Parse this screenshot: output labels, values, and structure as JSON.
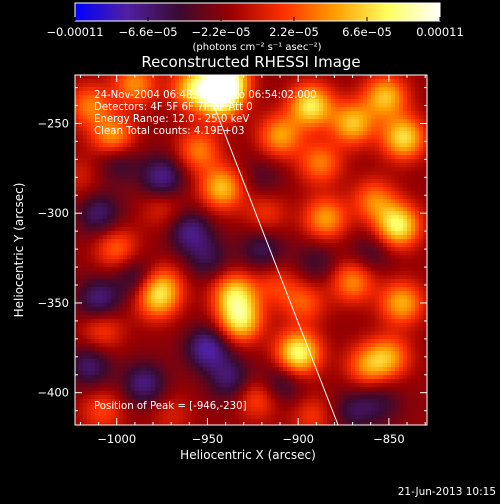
{
  "chart_data": {
    "type": "heatmap",
    "title": "Reconstructed RHESSI Image",
    "xlabel": "Heliocentric X (arcsec)",
    "ylabel": "Heliocentric Y (arcsec)",
    "xlim": [
      -1023,
      -829
    ],
    "ylim": [
      -418,
      -223
    ],
    "x_ticks": [
      -1000,
      -950,
      -900,
      -850
    ],
    "x_tick_labels": [
      "−1000",
      "−950",
      "−900",
      "−850"
    ],
    "y_ticks": [
      -250,
      -300,
      -350,
      -400
    ],
    "y_tick_labels": [
      "−250",
      "−300",
      "−350",
      "−400"
    ],
    "colorbar": {
      "min": -0.00011,
      "max": 0.00011,
      "ticks": [
        -0.00011,
        -6.6e-05,
        -2.2e-05,
        2.2e-05,
        6.6e-05,
        0.00011
      ],
      "tick_labels": [
        "−0.00011",
        "−6.6e−05",
        "−2.2e−05",
        "2.2e−05",
        "6.6e−05",
        "0.00011"
      ],
      "unit_label": "(photons cm⁻² s⁻¹ asec⁻²)",
      "colormap": [
        "#0000ff",
        "#5020a0",
        "#3a0a30",
        "#9a0000",
        "#ff3000",
        "#ffa000",
        "#ffff60",
        "#ffffff"
      ]
    },
    "annotations": [
      "24-Nov-2004 06:48:02.000 to 06:54:02.000",
      "Detectors: 4F 5F 6F 7F 8F  Att 0",
      "Energy Range: 12.0 - 25.0 keV",
      "Clean     Total counts: 4.19E+03"
    ],
    "peak_label": "Position of Peak = [-946,-230]",
    "limb_line": {
      "points": [
        [
          -953,
          -223
        ],
        [
          -878,
          -418
        ]
      ]
    },
    "blobs": [
      {
        "x": -940,
        "y": -225,
        "v": 1.0
      },
      {
        "x": -943,
        "y": -235,
        "v": 0.95
      },
      {
        "x": -958,
        "y": -230,
        "v": 0.7
      },
      {
        "x": -990,
        "y": -228,
        "v": 0.55
      },
      {
        "x": -1002,
        "y": -258,
        "v": 0.65
      },
      {
        "x": -1015,
        "y": -240,
        "v": 0.5
      },
      {
        "x": -955,
        "y": -265,
        "v": 0.5
      },
      {
        "x": -942,
        "y": -286,
        "v": 0.7
      },
      {
        "x": -910,
        "y": -257,
        "v": 0.6
      },
      {
        "x": -893,
        "y": -240,
        "v": 0.85
      },
      {
        "x": -870,
        "y": -250,
        "v": 0.7
      },
      {
        "x": -888,
        "y": -272,
        "v": 0.5
      },
      {
        "x": -852,
        "y": -235,
        "v": 0.7
      },
      {
        "x": -842,
        "y": -258,
        "v": 0.8
      },
      {
        "x": -918,
        "y": -300,
        "v": 0.3
      },
      {
        "x": -885,
        "y": -303,
        "v": 0.6
      },
      {
        "x": -845,
        "y": -307,
        "v": 0.9
      },
      {
        "x": -858,
        "y": -293,
        "v": 0.5
      },
      {
        "x": -975,
        "y": -297,
        "v": 0.25
      },
      {
        "x": -1000,
        "y": -320,
        "v": 0.45
      },
      {
        "x": -975,
        "y": -340,
        "v": 0.45
      },
      {
        "x": -978,
        "y": -348,
        "v": 0.55
      },
      {
        "x": -1008,
        "y": -365,
        "v": 0.35
      },
      {
        "x": -935,
        "y": -345,
        "v": 0.75
      },
      {
        "x": -932,
        "y": -360,
        "v": 0.8
      },
      {
        "x": -912,
        "y": -340,
        "v": 0.3
      },
      {
        "x": -897,
        "y": -350,
        "v": 0.4
      },
      {
        "x": -870,
        "y": -338,
        "v": 0.55
      },
      {
        "x": -843,
        "y": -350,
        "v": 0.65
      },
      {
        "x": -900,
        "y": -378,
        "v": 0.95
      },
      {
        "x": -922,
        "y": -403,
        "v": 0.4
      },
      {
        "x": -862,
        "y": -385,
        "v": 0.5
      },
      {
        "x": -850,
        "y": -380,
        "v": 0.55
      },
      {
        "x": -1008,
        "y": -410,
        "v": 0.35
      },
      {
        "x": -970,
        "y": -412,
        "v": 0.2
      },
      {
        "x": -892,
        "y": -413,
        "v": 0.3
      },
      {
        "x": -1020,
        "y": -280,
        "v": 0.2
      },
      {
        "x": -1000,
        "y": -270,
        "v": -0.35
      },
      {
        "x": -975,
        "y": -280,
        "v": -0.5
      },
      {
        "x": -1010,
        "y": -300,
        "v": -0.4
      },
      {
        "x": -960,
        "y": -310,
        "v": -0.45
      },
      {
        "x": -950,
        "y": -325,
        "v": -0.3
      },
      {
        "x": -920,
        "y": -320,
        "v": -0.35
      },
      {
        "x": -990,
        "y": -335,
        "v": -0.35
      },
      {
        "x": -1010,
        "y": -348,
        "v": -0.45
      },
      {
        "x": -1015,
        "y": -385,
        "v": -0.4
      },
      {
        "x": -985,
        "y": -395,
        "v": -0.45
      },
      {
        "x": -950,
        "y": -375,
        "v": -0.55
      },
      {
        "x": -938,
        "y": -392,
        "v": -0.4
      },
      {
        "x": -910,
        "y": -395,
        "v": -0.35
      },
      {
        "x": -890,
        "y": -327,
        "v": -0.25
      },
      {
        "x": -870,
        "y": -410,
        "v": -0.3
      },
      {
        "x": -855,
        "y": -405,
        "v": -0.25
      },
      {
        "x": -920,
        "y": -280,
        "v": -0.2
      },
      {
        "x": -860,
        "y": -322,
        "v": -0.25
      }
    ]
  },
  "footer": {
    "date": "21-Jun-2013 10:15"
  }
}
